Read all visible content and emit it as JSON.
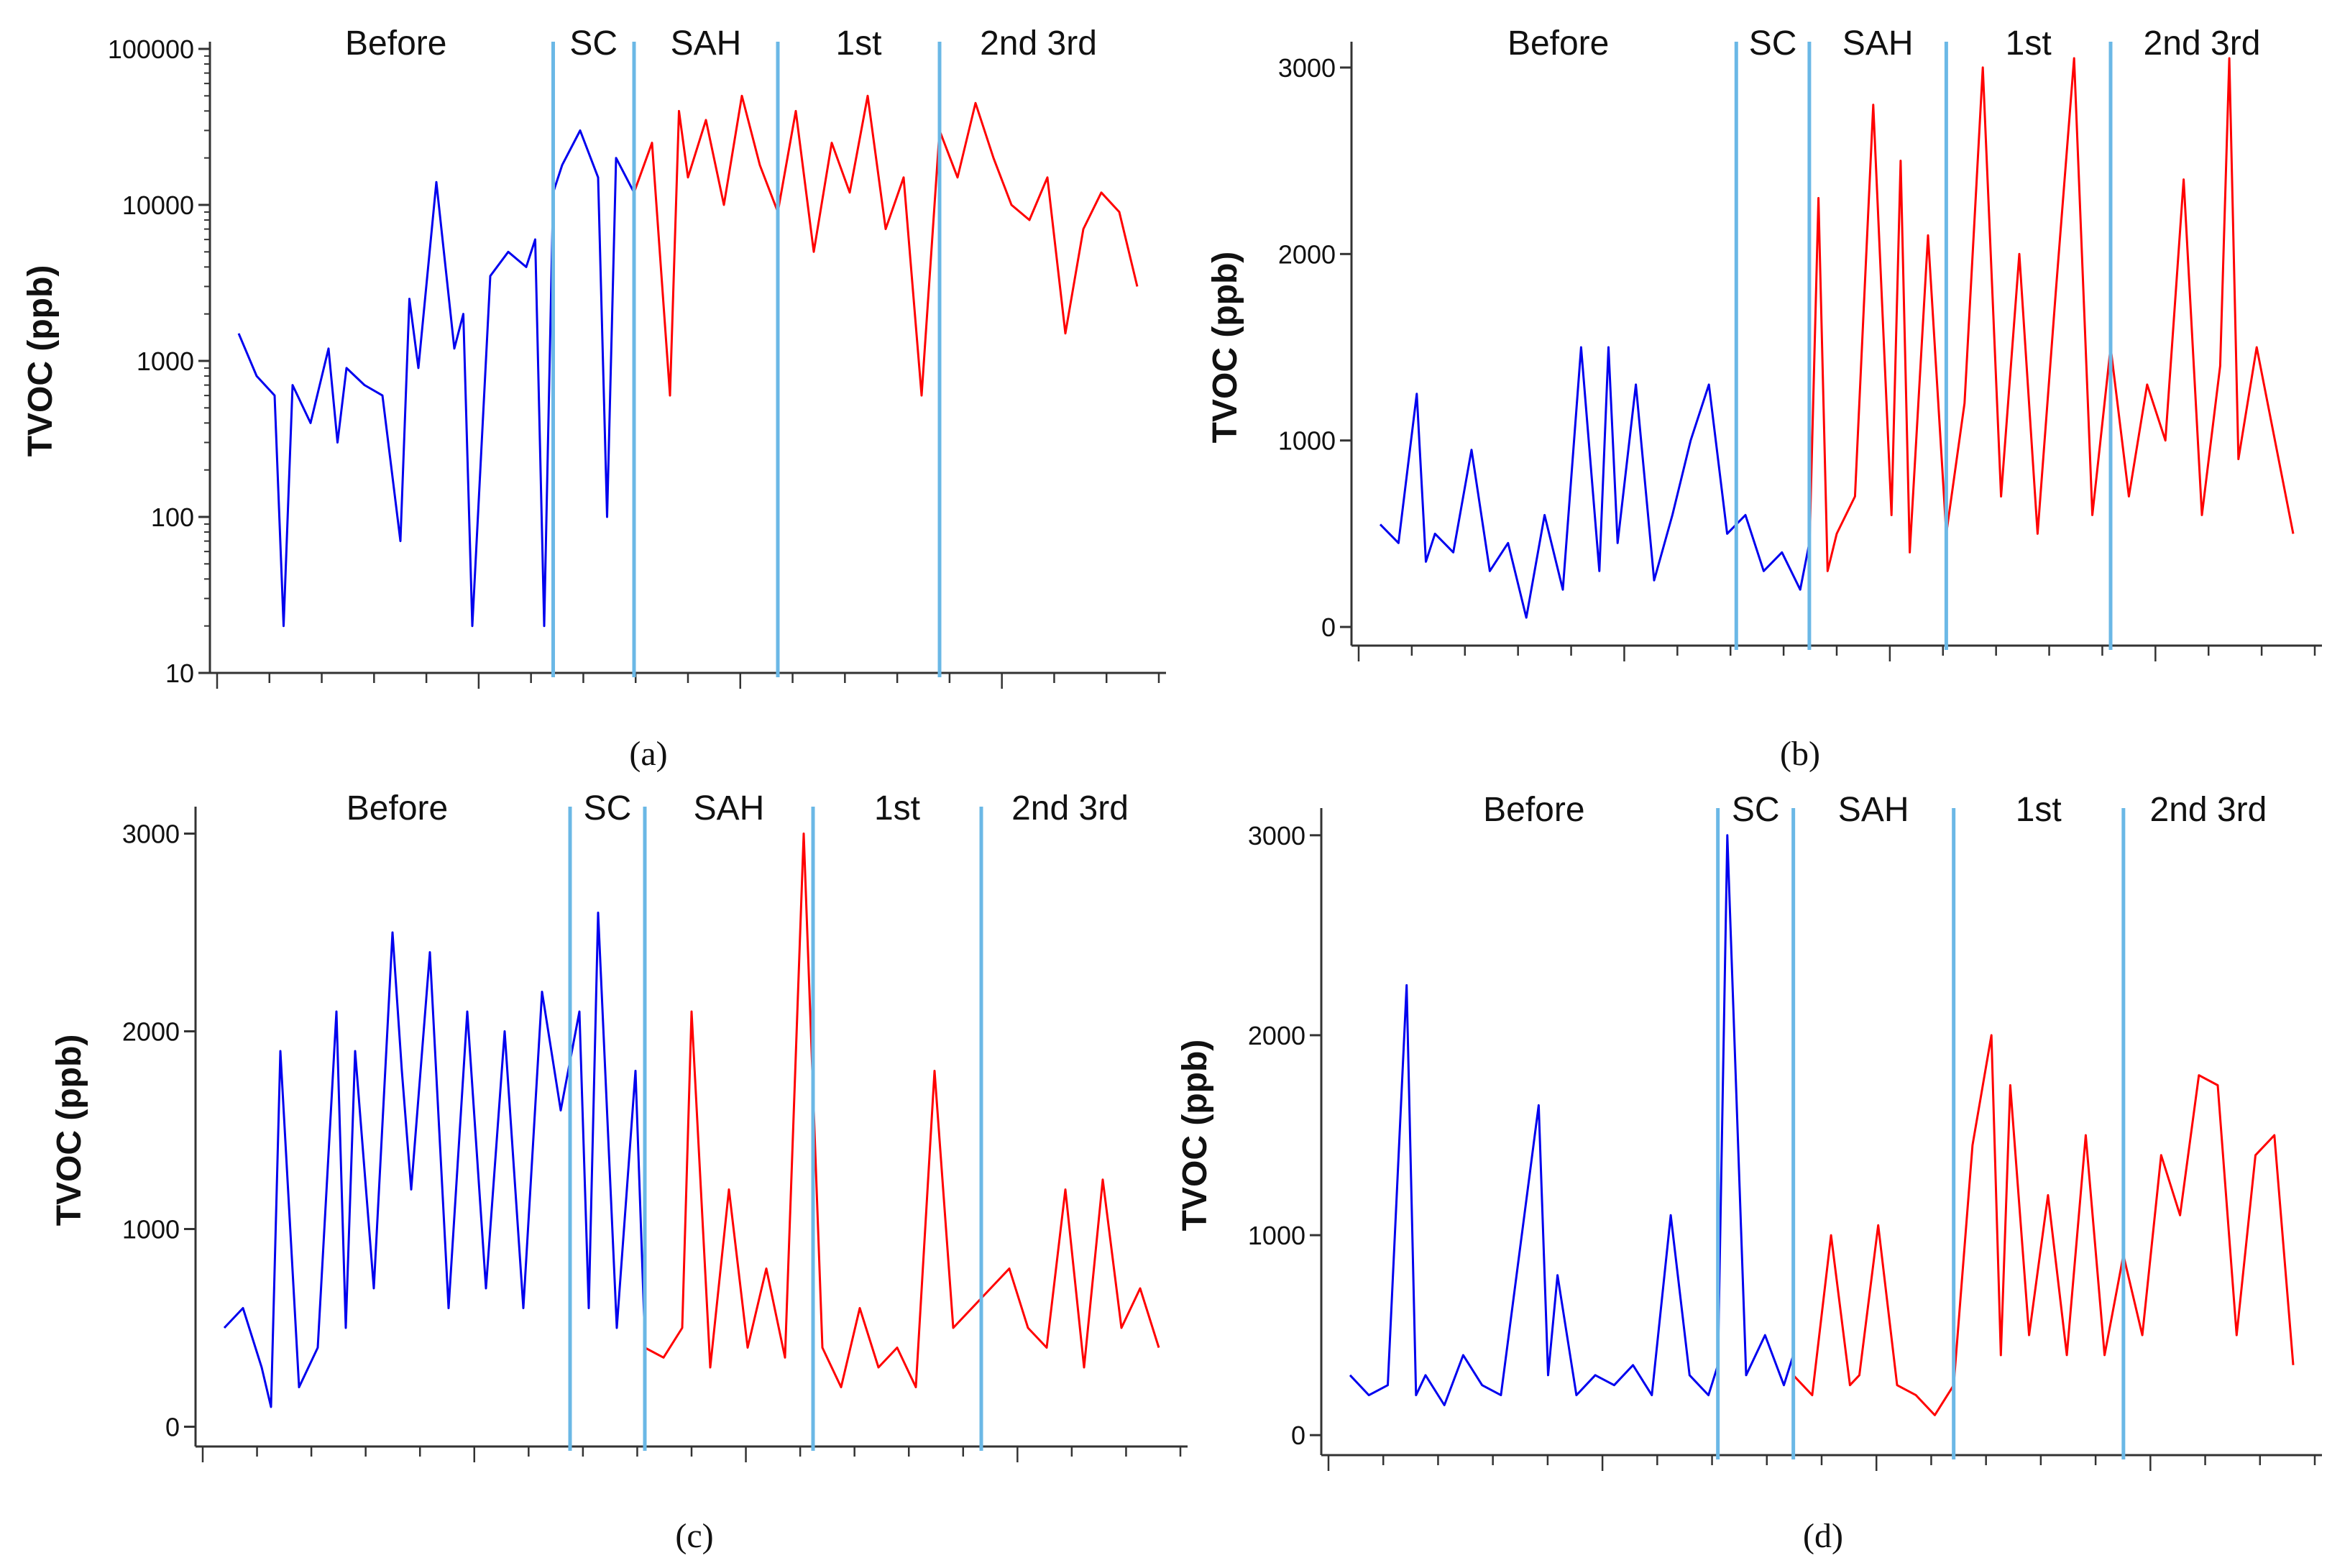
{
  "colors": {
    "before": "#0000ee",
    "after": "#ff0000",
    "divider": "#6bb8e6",
    "axis": "#333333"
  },
  "chart_data": [
    {
      "panel": "(a)",
      "type": "line",
      "ylabel": "TVOC (ppb)",
      "yscale": "log",
      "ylim": [
        10,
        100000
      ],
      "yticks": [
        10,
        100,
        1000,
        10000,
        100000
      ],
      "ytick_labels": [
        "10",
        "100",
        "1000",
        "10000",
        "100000"
      ],
      "x_ticks_count": 18,
      "phases": [
        {
          "label": "Before",
          "start": 0.0,
          "end": 0.35
        },
        {
          "label": "SC",
          "start": 0.35,
          "end": 0.44
        },
        {
          "label": "SAH",
          "start": 0.44,
          "end": 0.6
        },
        {
          "label": "1st",
          "start": 0.6,
          "end": 0.78
        },
        {
          "label": "2nd 3rd",
          "start": 0.78,
          "end": 1.0
        }
      ],
      "dividers": [
        0.35,
        0.44,
        0.6,
        0.78
      ],
      "series": [
        {
          "name": "before",
          "x": [
            0,
            0.02,
            0.04,
            0.05,
            0.06,
            0.08,
            0.1,
            0.11,
            0.12,
            0.14,
            0.16,
            0.18,
            0.19,
            0.2,
            0.22,
            0.24,
            0.25,
            0.26,
            0.28,
            0.3,
            0.32,
            0.33,
            0.34,
            0.35,
            0.36,
            0.38,
            0.4,
            0.41,
            0.42,
            0.44
          ],
          "y": [
            1500,
            800,
            600,
            20,
            700,
            400,
            1200,
            300,
            900,
            700,
            600,
            70,
            2500,
            900,
            14000,
            1200,
            2000,
            20,
            3500,
            5000,
            4000,
            6000,
            20,
            12000,
            18000,
            30000,
            15000,
            100,
            20000,
            12000
          ],
          "color": "before"
        },
        {
          "name": "after",
          "x": [
            0.44,
            0.46,
            0.48,
            0.49,
            0.5,
            0.52,
            0.54,
            0.56,
            0.58,
            0.6,
            0.62,
            0.64,
            0.66,
            0.68,
            0.7,
            0.72,
            0.74,
            0.76,
            0.78,
            0.8,
            0.82,
            0.84,
            0.86,
            0.88,
            0.9,
            0.92,
            0.94,
            0.96,
            0.98,
            1.0
          ],
          "y": [
            12000,
            25000,
            600,
            40000,
            15000,
            35000,
            10000,
            50000,
            18000,
            9000,
            40000,
            5000,
            25000,
            12000,
            50000,
            7000,
            15000,
            600,
            30000,
            15000,
            45000,
            20000,
            10000,
            8000,
            15000,
            1500,
            7000,
            12000,
            9000,
            3000
          ],
          "color": "after"
        }
      ]
    },
    {
      "panel": "(b)",
      "type": "line",
      "ylabel": "TVOC (ppb)",
      "yscale": "linear",
      "ylim": [
        -100,
        3100
      ],
      "yticks": [
        0,
        1000,
        2000,
        3000
      ],
      "ytick_labels": [
        "0",
        "1000",
        "2000",
        "3000"
      ],
      "x_ticks_count": 18,
      "phases": [
        {
          "label": "Before",
          "start": 0.0,
          "end": 0.39
        },
        {
          "label": "SC",
          "start": 0.39,
          "end": 0.47
        },
        {
          "label": "SAH",
          "start": 0.47,
          "end": 0.62
        },
        {
          "label": "1st",
          "start": 0.62,
          "end": 0.8
        },
        {
          "label": "2nd 3rd",
          "start": 0.8,
          "end": 1.0
        }
      ],
      "dividers": [
        0.39,
        0.47,
        0.62,
        0.8
      ],
      "series": [
        {
          "name": "before",
          "x": [
            0,
            0.02,
            0.04,
            0.05,
            0.06,
            0.08,
            0.1,
            0.12,
            0.14,
            0.16,
            0.18,
            0.2,
            0.22,
            0.24,
            0.25,
            0.26,
            0.28,
            0.3,
            0.32,
            0.34,
            0.36,
            0.38,
            0.4,
            0.42,
            0.44,
            0.46,
            0.47
          ],
          "y": [
            550,
            450,
            1250,
            350,
            500,
            400,
            950,
            300,
            450,
            50,
            600,
            200,
            1500,
            300,
            1500,
            450,
            1300,
            250,
            600,
            1000,
            1300,
            500,
            600,
            300,
            400,
            200,
            450
          ],
          "color": "before"
        },
        {
          "name": "after",
          "x": [
            0.47,
            0.48,
            0.49,
            0.5,
            0.52,
            0.54,
            0.56,
            0.57,
            0.58,
            0.6,
            0.62,
            0.64,
            0.66,
            0.68,
            0.7,
            0.72,
            0.74,
            0.76,
            0.78,
            0.8,
            0.82,
            0.84,
            0.86,
            0.88,
            0.9,
            0.92,
            0.93,
            0.94,
            0.96,
            1.0
          ],
          "y": [
            400,
            2300,
            300,
            500,
            700,
            2800,
            600,
            2500,
            400,
            2100,
            500,
            1200,
            3000,
            700,
            2000,
            500,
            1800,
            3050,
            600,
            1500,
            700,
            1300,
            1000,
            2400,
            600,
            1400,
            3050,
            900,
            1500,
            500
          ],
          "color": "after"
        }
      ]
    },
    {
      "panel": "(c)",
      "type": "line",
      "ylabel": "TVOC (ppb)",
      "yscale": "linear",
      "ylim": [
        -100,
        3100
      ],
      "yticks": [
        0,
        1000,
        2000,
        3000
      ],
      "ytick_labels": [
        "0",
        "1000",
        "2000",
        "3000"
      ],
      "x_ticks_count": 18,
      "phases": [
        {
          "label": "Before",
          "start": 0.0,
          "end": 0.37
        },
        {
          "label": "SC",
          "start": 0.37,
          "end": 0.45
        },
        {
          "label": "SAH",
          "start": 0.45,
          "end": 0.63
        },
        {
          "label": "1st",
          "start": 0.63,
          "end": 0.81
        },
        {
          "label": "2nd 3rd",
          "start": 0.81,
          "end": 1.0
        }
      ],
      "dividers": [
        0.37,
        0.45,
        0.63,
        0.81
      ],
      "series": [
        {
          "name": "before",
          "x": [
            0,
            0.02,
            0.04,
            0.05,
            0.06,
            0.08,
            0.1,
            0.12,
            0.13,
            0.14,
            0.16,
            0.18,
            0.19,
            0.2,
            0.22,
            0.24,
            0.26,
            0.28,
            0.3,
            0.32,
            0.34,
            0.36,
            0.38,
            0.39,
            0.4,
            0.42,
            0.44,
            0.45
          ],
          "y": [
            500,
            600,
            300,
            100,
            1900,
            200,
            400,
            2100,
            500,
            1900,
            700,
            2500,
            1800,
            1200,
            2400,
            600,
            2100,
            700,
            2000,
            600,
            2200,
            1600,
            2100,
            600,
            2600,
            500,
            1800,
            450
          ],
          "color": "before"
        },
        {
          "name": "after",
          "x": [
            0.45,
            0.47,
            0.49,
            0.5,
            0.52,
            0.54,
            0.56,
            0.58,
            0.6,
            0.62,
            0.64,
            0.66,
            0.68,
            0.7,
            0.72,
            0.74,
            0.76,
            0.78,
            0.8,
            0.82,
            0.84,
            0.86,
            0.88,
            0.9,
            0.92,
            0.94,
            0.96,
            0.98,
            1.0
          ],
          "y": [
            400,
            350,
            500,
            2100,
            300,
            1200,
            400,
            800,
            350,
            3000,
            400,
            200,
            600,
            300,
            400,
            200,
            1800,
            500,
            600,
            700,
            800,
            500,
            400,
            1200,
            300,
            1250,
            500,
            700,
            400
          ],
          "color": "after"
        }
      ]
    },
    {
      "panel": "(d)",
      "type": "line",
      "ylabel": "TVOC (ppb)",
      "yscale": "linear",
      "ylim": [
        -100,
        3100
      ],
      "yticks": [
        0,
        1000,
        2000,
        3000
      ],
      "ytick_labels": [
        "0",
        "1000",
        "2000",
        "3000"
      ],
      "x_ticks_count": 18,
      "phases": [
        {
          "label": "Before",
          "start": 0.0,
          "end": 0.39
        },
        {
          "label": "SC",
          "start": 0.39,
          "end": 0.47
        },
        {
          "label": "SAH",
          "start": 0.47,
          "end": 0.64
        },
        {
          "label": "1st",
          "start": 0.64,
          "end": 0.82
        },
        {
          "label": "2nd 3rd",
          "start": 0.82,
          "end": 1.0
        }
      ],
      "dividers": [
        0.39,
        0.47,
        0.64,
        0.82
      ],
      "series": [
        {
          "name": "before",
          "x": [
            0,
            0.02,
            0.04,
            0.06,
            0.07,
            0.08,
            0.1,
            0.12,
            0.14,
            0.16,
            0.2,
            0.21,
            0.22,
            0.24,
            0.26,
            0.28,
            0.3,
            0.32,
            0.34,
            0.36,
            0.38,
            0.39,
            0.4,
            0.42,
            0.44,
            0.46,
            0.47
          ],
          "y": [
            300,
            200,
            250,
            2250,
            200,
            300,
            150,
            400,
            250,
            200,
            1650,
            300,
            800,
            200,
            300,
            250,
            350,
            200,
            1100,
            300,
            200,
            350,
            3000,
            300,
            500,
            250,
            400
          ],
          "color": "before"
        },
        {
          "name": "after",
          "x": [
            0.47,
            0.49,
            0.51,
            0.53,
            0.54,
            0.56,
            0.58,
            0.6,
            0.62,
            0.64,
            0.66,
            0.68,
            0.69,
            0.7,
            0.72,
            0.74,
            0.76,
            0.78,
            0.8,
            0.82,
            0.84,
            0.86,
            0.88,
            0.9,
            0.92,
            0.94,
            0.96,
            0.98,
            1.0
          ],
          "y": [
            300,
            200,
            1000,
            250,
            300,
            1050,
            250,
            200,
            100,
            250,
            1450,
            2000,
            400,
            1750,
            500,
            1200,
            400,
            1500,
            400,
            900,
            500,
            1400,
            1100,
            1800,
            1750,
            500,
            1400,
            1500,
            350
          ],
          "color": "after"
        }
      ]
    }
  ]
}
